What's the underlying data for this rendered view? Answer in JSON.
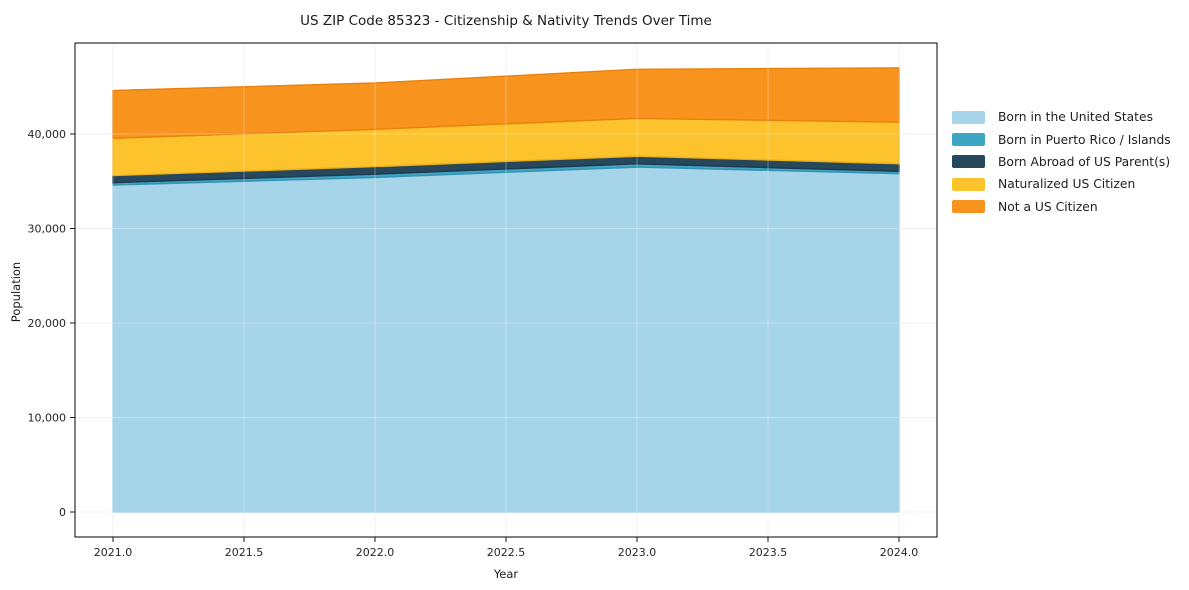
{
  "figure": {
    "title": "US ZIP Code 85323 - Citizenship & Nativity Trends Over Time",
    "xlabel": "Year",
    "ylabel": "Population"
  },
  "chart_data": {
    "type": "area",
    "stacked": true,
    "title": "US ZIP Code 85323 - Citizenship & Nativity Trends Over Time",
    "xlabel": "Year",
    "ylabel": "Population",
    "x": [
      2021,
      2022,
      2023,
      2024
    ],
    "series": [
      {
        "id": "born-us",
        "name": "Born in the United States",
        "color": "#A6D4E8",
        "edge": "#98CAE1",
        "values": [
          34600,
          35400,
          36500,
          35800
        ]
      },
      {
        "id": "born-pr",
        "name": "Born in Puerto Rico / Islands",
        "color": "#3EA5C4",
        "edge": "#3493B2",
        "values": [
          250,
          350,
          350,
          250
        ]
      },
      {
        "id": "born-abroad",
        "name": "Born Abroad of US Parent(s)",
        "color": "#26475C",
        "edge": "#1C3A4D",
        "values": [
          750,
          800,
          800,
          800
        ]
      },
      {
        "id": "naturalized",
        "name": "Naturalized US Citizen",
        "color": "#FDC32D",
        "edge": "#EDB018",
        "values": [
          3950,
          3950,
          4000,
          4400
        ]
      },
      {
        "id": "not-citizen",
        "name": "Not a US Citizen",
        "color": "#F8941E",
        "edge": "#E8820E",
        "values": [
          5050,
          4900,
          5200,
          5750
        ]
      }
    ],
    "xticks": {
      "values": [
        2021.0,
        2021.5,
        2022.0,
        2022.5,
        2023.0,
        2023.5,
        2024.0
      ],
      "labels": [
        "2021.0",
        "2021.5",
        "2022.0",
        "2022.5",
        "2023.0",
        "2023.5",
        "2024.0"
      ]
    },
    "yticks": {
      "values": [
        0,
        10000,
        20000,
        30000,
        40000
      ],
      "labels": [
        "0",
        "10,000",
        "20,000",
        "30,000",
        "40,000"
      ]
    },
    "xlim": [
      2020.85,
      2024.15
    ],
    "ylim": [
      -2750,
      49650
    ],
    "grid": true,
    "legend_position": "right",
    "legend_frame": false
  }
}
